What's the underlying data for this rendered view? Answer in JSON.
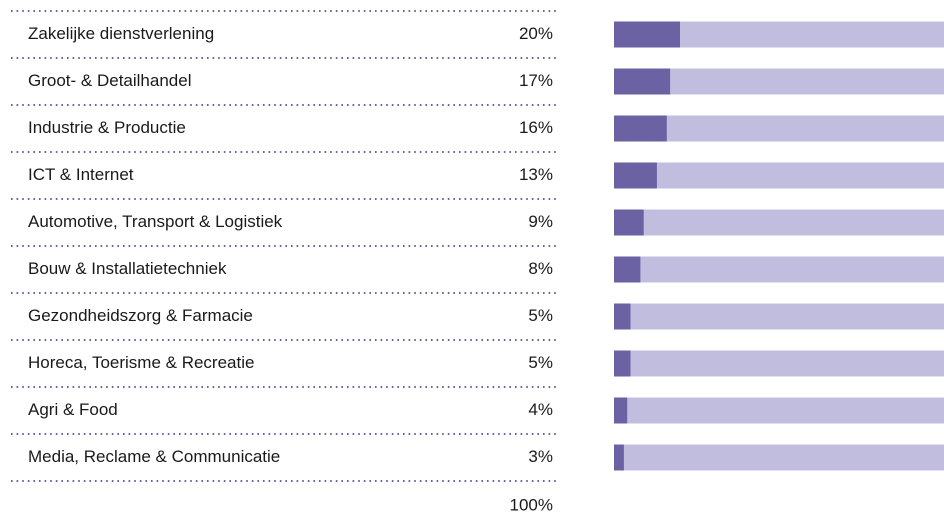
{
  "chart_data": {
    "type": "bar",
    "categories": [
      "Zakelijke dienstverlening",
      "Groot- & Detailhandel",
      "Industrie & Productie",
      "ICT & Internet",
      "Automotive, Transport & Logistiek",
      "Bouw & Installatietechniek",
      "Gezondheidszorg & Farmacie",
      "Horeca, Toerisme & Recreatie",
      "Agri & Food",
      "Media, Reclame & Communicatie"
    ],
    "values": [
      20,
      17,
      16,
      13,
      9,
      8,
      5,
      5,
      4,
      3
    ],
    "value_labels": [
      "20%",
      "17%",
      "16%",
      "13%",
      "9%",
      "8%",
      "5%",
      "5%",
      "4%",
      "3%"
    ],
    "total": {
      "value": 100,
      "label": "100%"
    },
    "xlim": [
      0,
      100
    ],
    "color": "#6a62a3",
    "track_color": "#c1bddf"
  }
}
